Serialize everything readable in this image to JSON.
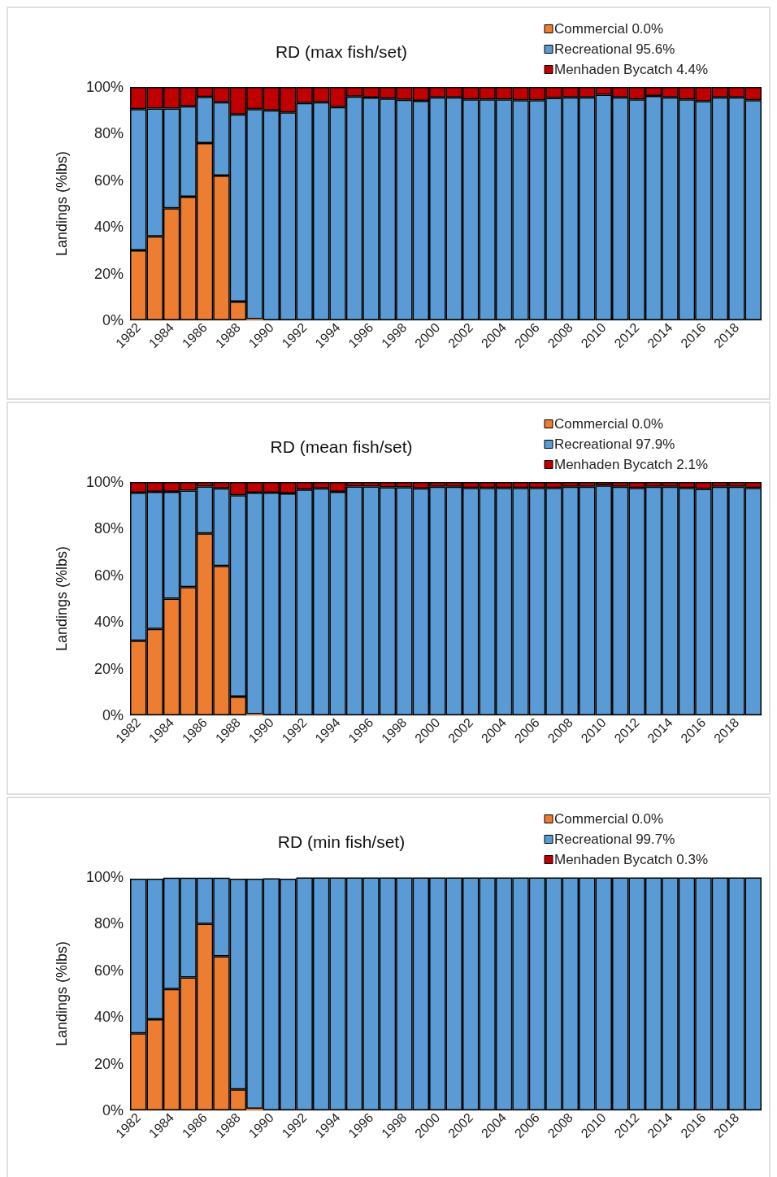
{
  "chart_data": [
    {
      "type": "bar",
      "title": "RD (max fish/set)",
      "ylabel": "Landings (%lbs)",
      "stacked": true,
      "legend": "top right",
      "grid": false,
      "categories": [
        "1982",
        null,
        "1984",
        null,
        "1986",
        null,
        "1988",
        null,
        "1990",
        null,
        "1992",
        null,
        "1994",
        null,
        "1996",
        null,
        "1998",
        null,
        "2000",
        null,
        "2002",
        null,
        "2004",
        null,
        "2006",
        null,
        "2008",
        null,
        "2010",
        null,
        "2012",
        null,
        "2014",
        null,
        "2016",
        null,
        "2018",
        null
      ],
      "ylim": [
        0,
        100
      ],
      "yticks": [
        {
          "value": 0,
          "label": "0%"
        },
        {
          "value": 20,
          "label": "20%"
        },
        {
          "value": 40,
          "label": "40%"
        },
        {
          "value": 60,
          "label": "60%"
        },
        {
          "value": 80,
          "label": "80%"
        },
        {
          "value": 100,
          "label": "100%"
        }
      ],
      "series": [
        {
          "name": "Commercial 0.0%",
          "color": "#ed7d31",
          "values": [
            30,
            36,
            48,
            53,
            76,
            62,
            8,
            0.5,
            0,
            0,
            0,
            0,
            0,
            0,
            0,
            0,
            0,
            0,
            0,
            0,
            0,
            0,
            0,
            0,
            0,
            0,
            0,
            0,
            0,
            0,
            0,
            0,
            0,
            0,
            0,
            0,
            0,
            0
          ]
        },
        {
          "name": "Recreational 95.6%",
          "color": "#5b9bd5",
          "values": [
            60.5,
            54.8,
            42.8,
            38.7,
            19.7,
            31.5,
            80.2,
            90,
            90,
            89.1,
            93.1,
            93.5,
            91.4,
            95.9,
            95.5,
            95,
            94.5,
            94.1,
            95.6,
            95.6,
            94.7,
            94.7,
            94.7,
            94.3,
            94.3,
            95.3,
            95.6,
            95.6,
            96.7,
            95.6,
            94.7,
            96.2,
            95.6,
            94.7,
            93.9,
            95.6,
            95.6,
            94.3
          ]
        },
        {
          "name": "Menhaden Bycatch 4.4%",
          "color": "#c00000",
          "values": [
            9.5,
            9.2,
            9.2,
            8.3,
            4.3,
            6.5,
            11.8,
            9.5,
            10,
            10.9,
            6.9,
            6.5,
            8.6,
            4.1,
            4.5,
            5,
            5.5,
            5.9,
            4.4,
            4.4,
            5.3,
            5.3,
            5.3,
            5.7,
            5.7,
            4.7,
            4.4,
            4.4,
            3.3,
            4.4,
            5.3,
            3.8,
            4.4,
            5.3,
            6.1,
            4.4,
            4.4,
            5.7
          ]
        }
      ]
    },
    {
      "type": "bar",
      "title": "RD (mean fish/set)",
      "ylabel": "Landings (%lbs)",
      "stacked": true,
      "legend": "top right",
      "grid": false,
      "categories": [
        "1982",
        null,
        "1984",
        null,
        "1986",
        null,
        "1988",
        null,
        "1990",
        null,
        "1992",
        null,
        "1994",
        null,
        "1996",
        null,
        "1998",
        null,
        "2000",
        null,
        "2002",
        null,
        "2004",
        null,
        "2006",
        null,
        "2008",
        null,
        "2010",
        null,
        "2012",
        null,
        "2014",
        null,
        "2016",
        null,
        "2018",
        null
      ],
      "ylim": [
        0,
        100
      ],
      "yticks": [
        {
          "value": 0,
          "label": "0%"
        },
        {
          "value": 20,
          "label": "20%"
        },
        {
          "value": 40,
          "label": "40%"
        },
        {
          "value": 60,
          "label": "60%"
        },
        {
          "value": 80,
          "label": "80%"
        },
        {
          "value": 100,
          "label": "100%"
        }
      ],
      "series": [
        {
          "name": "Commercial 0.0%",
          "color": "#ed7d31",
          "values": [
            32,
            37,
            50,
            55,
            78,
            64,
            8,
            0.5,
            0,
            0,
            0,
            0,
            0,
            0,
            0,
            0,
            0,
            0,
            0,
            0,
            0,
            0,
            0,
            0,
            0,
            0,
            0,
            0,
            0,
            0,
            0,
            0,
            0,
            0,
            0,
            0,
            0,
            0
          ]
        },
        {
          "name": "Recreational 97.9%",
          "color": "#5b9bd5",
          "values": [
            63.5,
            58.8,
            45.8,
            41.3,
            20.1,
            33.3,
            86.3,
            95,
            95.5,
            95.1,
            96.8,
            97.3,
            95.8,
            98.1,
            98.1,
            97.7,
            97.7,
            97.3,
            98,
            98,
            97.5,
            97.5,
            97.5,
            97.5,
            97.5,
            97.5,
            98,
            98,
            98.5,
            98,
            97.5,
            98,
            98,
            97.5,
            97,
            98,
            98,
            97.5
          ]
        },
        {
          "name": "Menhaden Bycatch 2.1%",
          "color": "#c00000",
          "values": [
            4.5,
            4.2,
            4.2,
            3.7,
            1.9,
            2.7,
            5.7,
            4.5,
            4.5,
            4.9,
            3.2,
            2.7,
            4.2,
            1.9,
            1.9,
            2.3,
            2.3,
            2.7,
            2,
            2,
            2.5,
            2.5,
            2.5,
            2.5,
            2.5,
            2.5,
            2,
            2,
            1.5,
            2,
            2.5,
            2,
            2,
            2.5,
            3,
            2,
            2,
            2.5
          ]
        }
      ]
    },
    {
      "type": "bar",
      "title": "RD (min fish/set)",
      "ylabel": "Landings (%lbs)",
      "stacked": true,
      "legend": "top right",
      "grid": false,
      "categories": [
        "1982",
        null,
        "1984",
        null,
        "1986",
        null,
        "1988",
        null,
        "1990",
        null,
        "1992",
        null,
        "1994",
        null,
        "1996",
        null,
        "1998",
        null,
        "2000",
        null,
        "2002",
        null,
        "2004",
        null,
        "2006",
        null,
        "2008",
        null,
        "2010",
        null,
        "2012",
        null,
        "2014",
        null,
        "2016",
        null,
        "2018",
        null
      ],
      "ylim": [
        0,
        100
      ],
      "yticks": [
        {
          "value": 0,
          "label": "0%"
        },
        {
          "value": 20,
          "label": "20%"
        },
        {
          "value": 40,
          "label": "40%"
        },
        {
          "value": 60,
          "label": "60%"
        },
        {
          "value": 80,
          "label": "80%"
        },
        {
          "value": 100,
          "label": "100%"
        }
      ],
      "series": [
        {
          "name": "Commercial 0.0%",
          "color": "#ed7d31",
          "values": [
            33,
            39,
            52,
            57,
            80,
            66,
            9,
            0.7,
            0,
            0,
            0,
            0,
            0,
            0,
            0,
            0,
            0,
            0,
            0,
            0,
            0,
            0,
            0,
            0,
            0,
            0,
            0,
            0,
            0,
            0,
            0,
            0,
            0,
            0,
            0,
            0,
            0,
            0
          ]
        },
        {
          "name": "Recreational 99.7%",
          "color": "#5b9bd5",
          "values": [
            66.3,
            60.3,
            47.7,
            42.7,
            19.7,
            33.7,
            90.3,
            98.6,
            99.5,
            99.3,
            99.8,
            99.8,
            99.8,
            99.8,
            99.8,
            99.8,
            99.8,
            99.8,
            99.8,
            99.8,
            99.8,
            99.8,
            99.8,
            99.8,
            99.8,
            99.8,
            99.8,
            99.8,
            99.8,
            99.8,
            99.8,
            99.8,
            99.8,
            99.8,
            99.8,
            99.8,
            99.8,
            99.8
          ]
        },
        {
          "name": "Menhaden Bycatch 0.3%",
          "color": "#c00000",
          "values": [
            null,
            null,
            null,
            null,
            null,
            null,
            null,
            null,
            null,
            null,
            null,
            null,
            null,
            null,
            null,
            null,
            null,
            null,
            null,
            null,
            null,
            null,
            null,
            null,
            null,
            null,
            null,
            null,
            null,
            null,
            null,
            null,
            null,
            null,
            null,
            null,
            null,
            null
          ]
        }
      ]
    }
  ]
}
